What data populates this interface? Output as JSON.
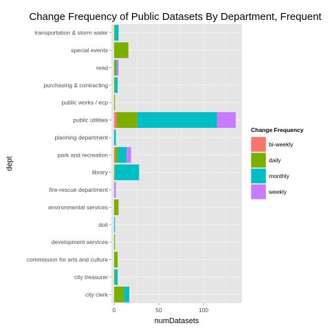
{
  "chart_data": {
    "type": "bar",
    "orientation": "horizontal",
    "stacked": true,
    "title": "Change Frequency of Public Datasets By Department, Frequent",
    "xlabel": "numDatasets",
    "ylabel": "dept",
    "xlim": [
      -3,
      143
    ],
    "xticks": [
      0,
      50,
      100
    ],
    "categories": [
      "city clerk",
      "city treasurer",
      "commission for arts and culture",
      "development services",
      "doit",
      "environmental services",
      "fire-rescue department",
      "library",
      "park and recreation",
      "planning department",
      "public utilities",
      "public works / ecp",
      "purchasing & contracting",
      "read",
      "special events",
      "transportation & storm water"
    ],
    "series": [
      {
        "name": "bi-weekly",
        "color": "#F8766D",
        "values": [
          0,
          0,
          0,
          0,
          0,
          0,
          0,
          0,
          1,
          0,
          3,
          0,
          0,
          0,
          0,
          0
        ]
      },
      {
        "name": "daily",
        "color": "#7CAE00",
        "values": [
          11,
          1,
          4,
          1,
          0,
          5,
          0,
          1,
          3,
          0,
          23,
          1,
          1,
          2,
          16,
          1
        ]
      },
      {
        "name": "monthly",
        "color": "#00BFC4",
        "values": [
          6,
          3,
          0,
          0,
          1,
          0,
          0,
          27,
          10,
          2,
          89,
          0,
          3,
          1,
          0,
          4
        ]
      },
      {
        "name": "weekly",
        "color": "#C77CFF",
        "values": [
          0,
          0,
          0,
          0,
          0,
          0,
          2,
          0,
          5,
          0,
          21,
          0,
          0,
          2,
          0,
          0
        ]
      }
    ],
    "legend": {
      "title": "Change Frequency",
      "position": "right"
    },
    "grid": true,
    "panel_background": "#E5E5E5"
  }
}
